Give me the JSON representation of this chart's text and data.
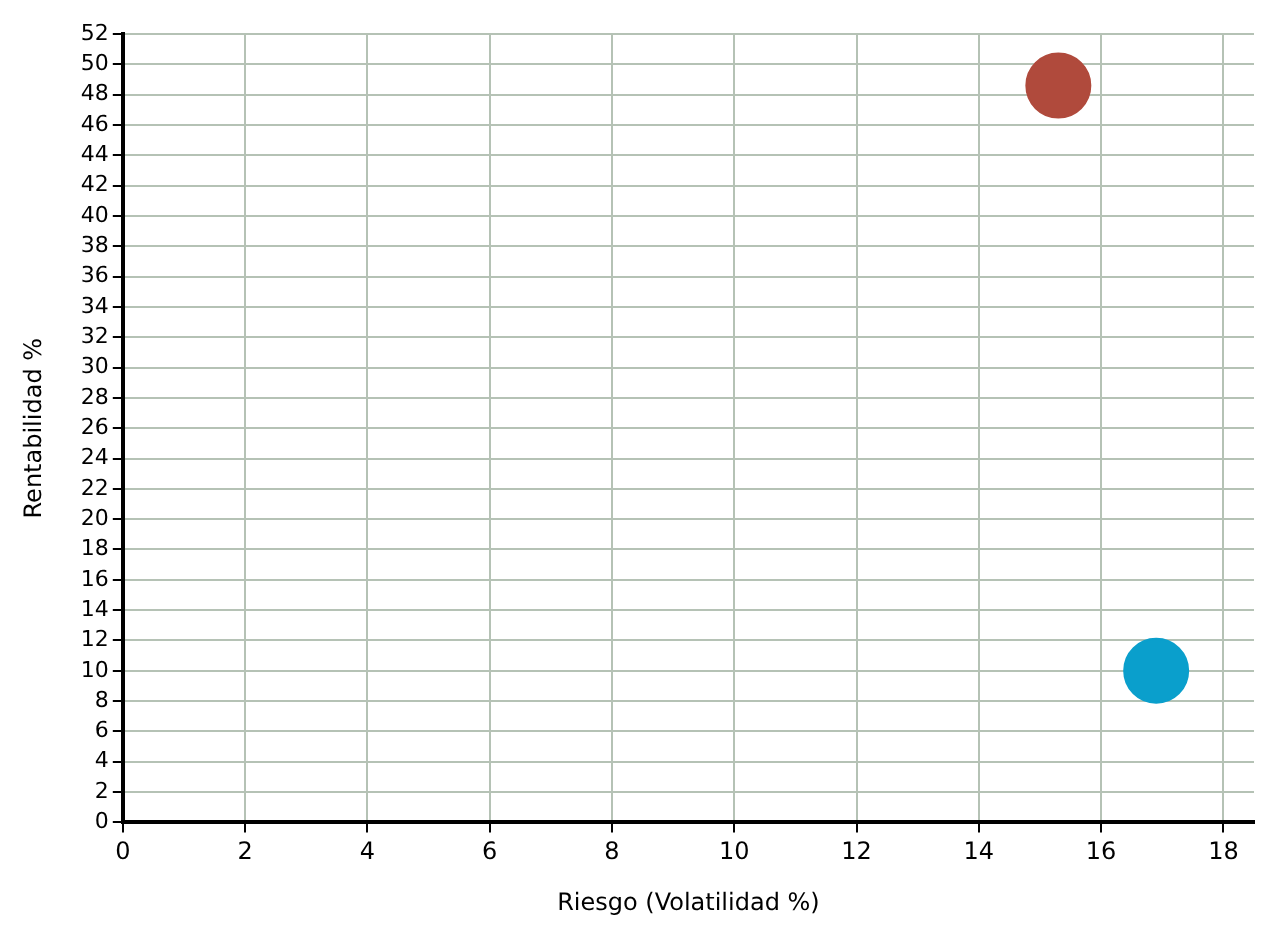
{
  "chart_data": {
    "type": "scatter",
    "xlabel": "Riesgo (Volatilidad %)",
    "ylabel": "Rentabilidad %",
    "series": [
      {
        "x": [
          15.3
        ],
        "values": [
          48.6
        ],
        "color": "#b04a3c"
      },
      {
        "x": [
          16.9
        ],
        "values": [
          10.0
        ],
        "color": "#0a9fcc"
      }
    ],
    "xlim": [
      0,
      18.5
    ],
    "xticks": [
      0,
      2,
      4,
      6,
      8,
      10,
      12,
      14,
      16,
      18
    ],
    "ylim": [
      0,
      52
    ],
    "yticks": [
      0,
      2,
      4,
      6,
      8,
      10,
      12,
      14,
      16,
      18,
      20,
      22,
      24,
      26,
      28,
      30,
      32,
      34,
      36,
      38,
      40,
      42,
      44,
      46,
      48,
      50,
      52
    ],
    "grid": true,
    "legend": false,
    "marker": "circle"
  }
}
